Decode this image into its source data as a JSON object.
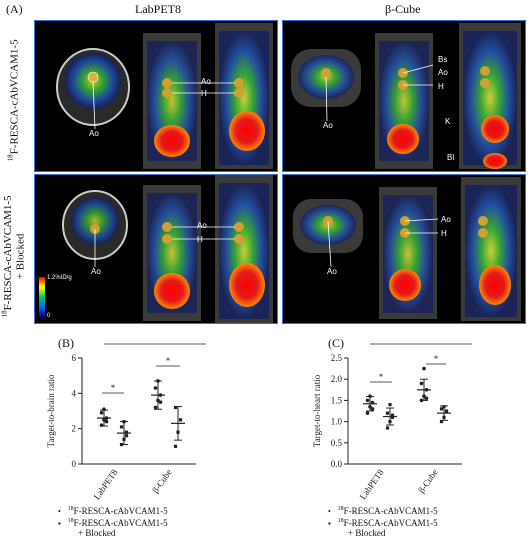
{
  "figure": {
    "panel_A_label": "(A)",
    "panel_B_label": "(B)",
    "panel_C_label": "(C)",
    "col_left_title": "LabPET8",
    "col_right_title": "β-Cube",
    "row1_label_sup": "18",
    "row1_label": "F-RESCA-cAbVCAM1-5",
    "row2_label_sup": "18",
    "row2_label_line1": "F-RESCA-cAbVCAM1-5",
    "row2_label_line2": "+ Blocked",
    "colorbar_max": "1.2%ID/g",
    "colorbar_min": "0",
    "annotations": {
      "ao": "Ao",
      "h": "H",
      "bs": "Bs",
      "k": "K",
      "bl": "Bl"
    },
    "legend": {
      "item1_sup": "18",
      "item1": "F-RESCA-cAbVCAM1-5",
      "item2_sup": "18",
      "item2_line1": "F-RESCA-cAbVCAM1-5",
      "item2_line2": "+ Blocked"
    },
    "significance": "*"
  },
  "chart_data": [
    {
      "type": "scatter",
      "title": "",
      "ylabel": "Target-to-brain ratio",
      "xlabel": "",
      "categories": [
        "LabPET8",
        "β-Cube"
      ],
      "ylim": [
        0,
        6
      ],
      "yticks": [
        0,
        2,
        4,
        6
      ],
      "series": [
        {
          "name": "18F-RESCA-cAbVCAM1-5",
          "mean": [
            2.6,
            3.9
          ],
          "sd": [
            0.45,
            0.8
          ],
          "points": [
            [
              2.2,
              2.5,
              2.6,
              2.9,
              3.1,
              2.4
            ],
            [
              3.2,
              3.6,
              3.9,
              4.3,
              4.7,
              3.5
            ]
          ]
        },
        {
          "name": "18F-RESCA-cAbVCAM1-5 + Blocked",
          "mean": [
            1.75,
            2.3
          ],
          "sd": [
            0.65,
            0.95
          ],
          "points": [
            [
              1.1,
              1.4,
              1.8,
              2.1,
              2.4,
              1.6
            ],
            [
              1.0,
              1.8,
              2.5,
              3.2
            ]
          ]
        }
      ]
    },
    {
      "type": "scatter",
      "title": "",
      "ylabel": "Target-to-heart ratio",
      "xlabel": "",
      "categories": [
        "LabPET8",
        "β-Cube"
      ],
      "ylim": [
        0,
        2.5
      ],
      "yticks": [
        0.0,
        0.5,
        1.0,
        1.5,
        2.0,
        2.5
      ],
      "series": [
        {
          "name": "18F-RESCA-cAbVCAM1-5",
          "mean": [
            1.42,
            1.75
          ],
          "sd": [
            0.17,
            0.25
          ],
          "points": [
            [
              1.2,
              1.35,
              1.45,
              1.5,
              1.6,
              1.3
            ],
            [
              1.5,
              1.6,
              1.75,
              1.9,
              2.25,
              1.55
            ]
          ]
        },
        {
          "name": "18F-RESCA-cAbVCAM1-5 + Blocked",
          "mean": [
            1.12,
            1.2
          ],
          "sd": [
            0.2,
            0.17
          ],
          "points": [
            [
              0.85,
              1.0,
              1.1,
              1.2,
              1.4,
              1.15
            ],
            [
              1.0,
              1.1,
              1.25,
              1.3,
              1.35
            ]
          ]
        }
      ]
    }
  ]
}
